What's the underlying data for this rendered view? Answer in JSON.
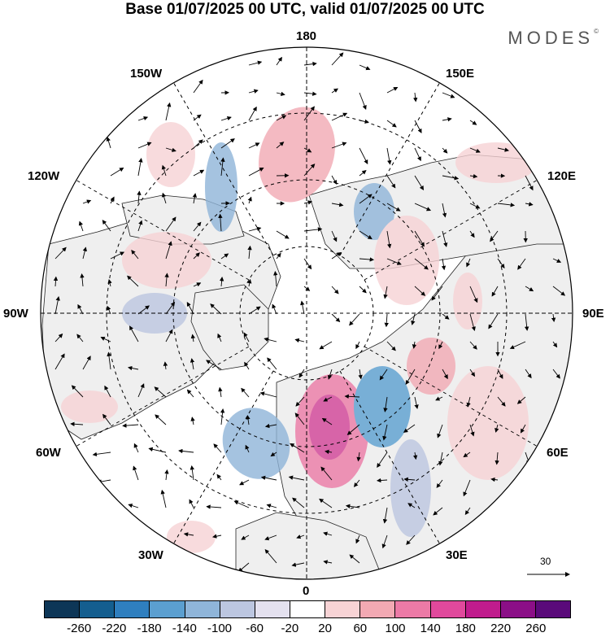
{
  "title": "Base 01/07/2025 00 UTC, valid 01/07/2025 00 UTC",
  "logo": {
    "text": "MODES",
    "mark": "©"
  },
  "longitude_labels": {
    "top": "180",
    "bottom": "0",
    "left": "90W",
    "right": "90E",
    "upper_left_1": "150W",
    "upper_left_2": "120W",
    "upper_right_1": "150E",
    "upper_right_2": "120E",
    "lower_left_1": "60W",
    "lower_left_2": "30W",
    "lower_right_1": "60E",
    "lower_right_2": "30E"
  },
  "vector_reference": {
    "label": "30"
  },
  "colorbar": {
    "ticks": [
      "-260",
      "-220",
      "-180",
      "-140",
      "-100",
      "-60",
      "-20",
      "20",
      "60",
      "100",
      "140",
      "180",
      "220",
      "260"
    ],
    "colors": [
      "#0d3657",
      "#145e8f",
      "#2f7fbf",
      "#5b9fd0",
      "#8fb5d9",
      "#bcc6e0",
      "#e4e1ef",
      "#ffffff",
      "#f7d3d5",
      "#f2a9b3",
      "#ec7aa6",
      "#e0499c",
      "#c01c8d",
      "#8b0f87",
      "#5a0a7a"
    ]
  },
  "projection": {
    "type": "north polar stereographic",
    "land_color": "#efefef",
    "ocean_color": "#ffffff"
  }
}
